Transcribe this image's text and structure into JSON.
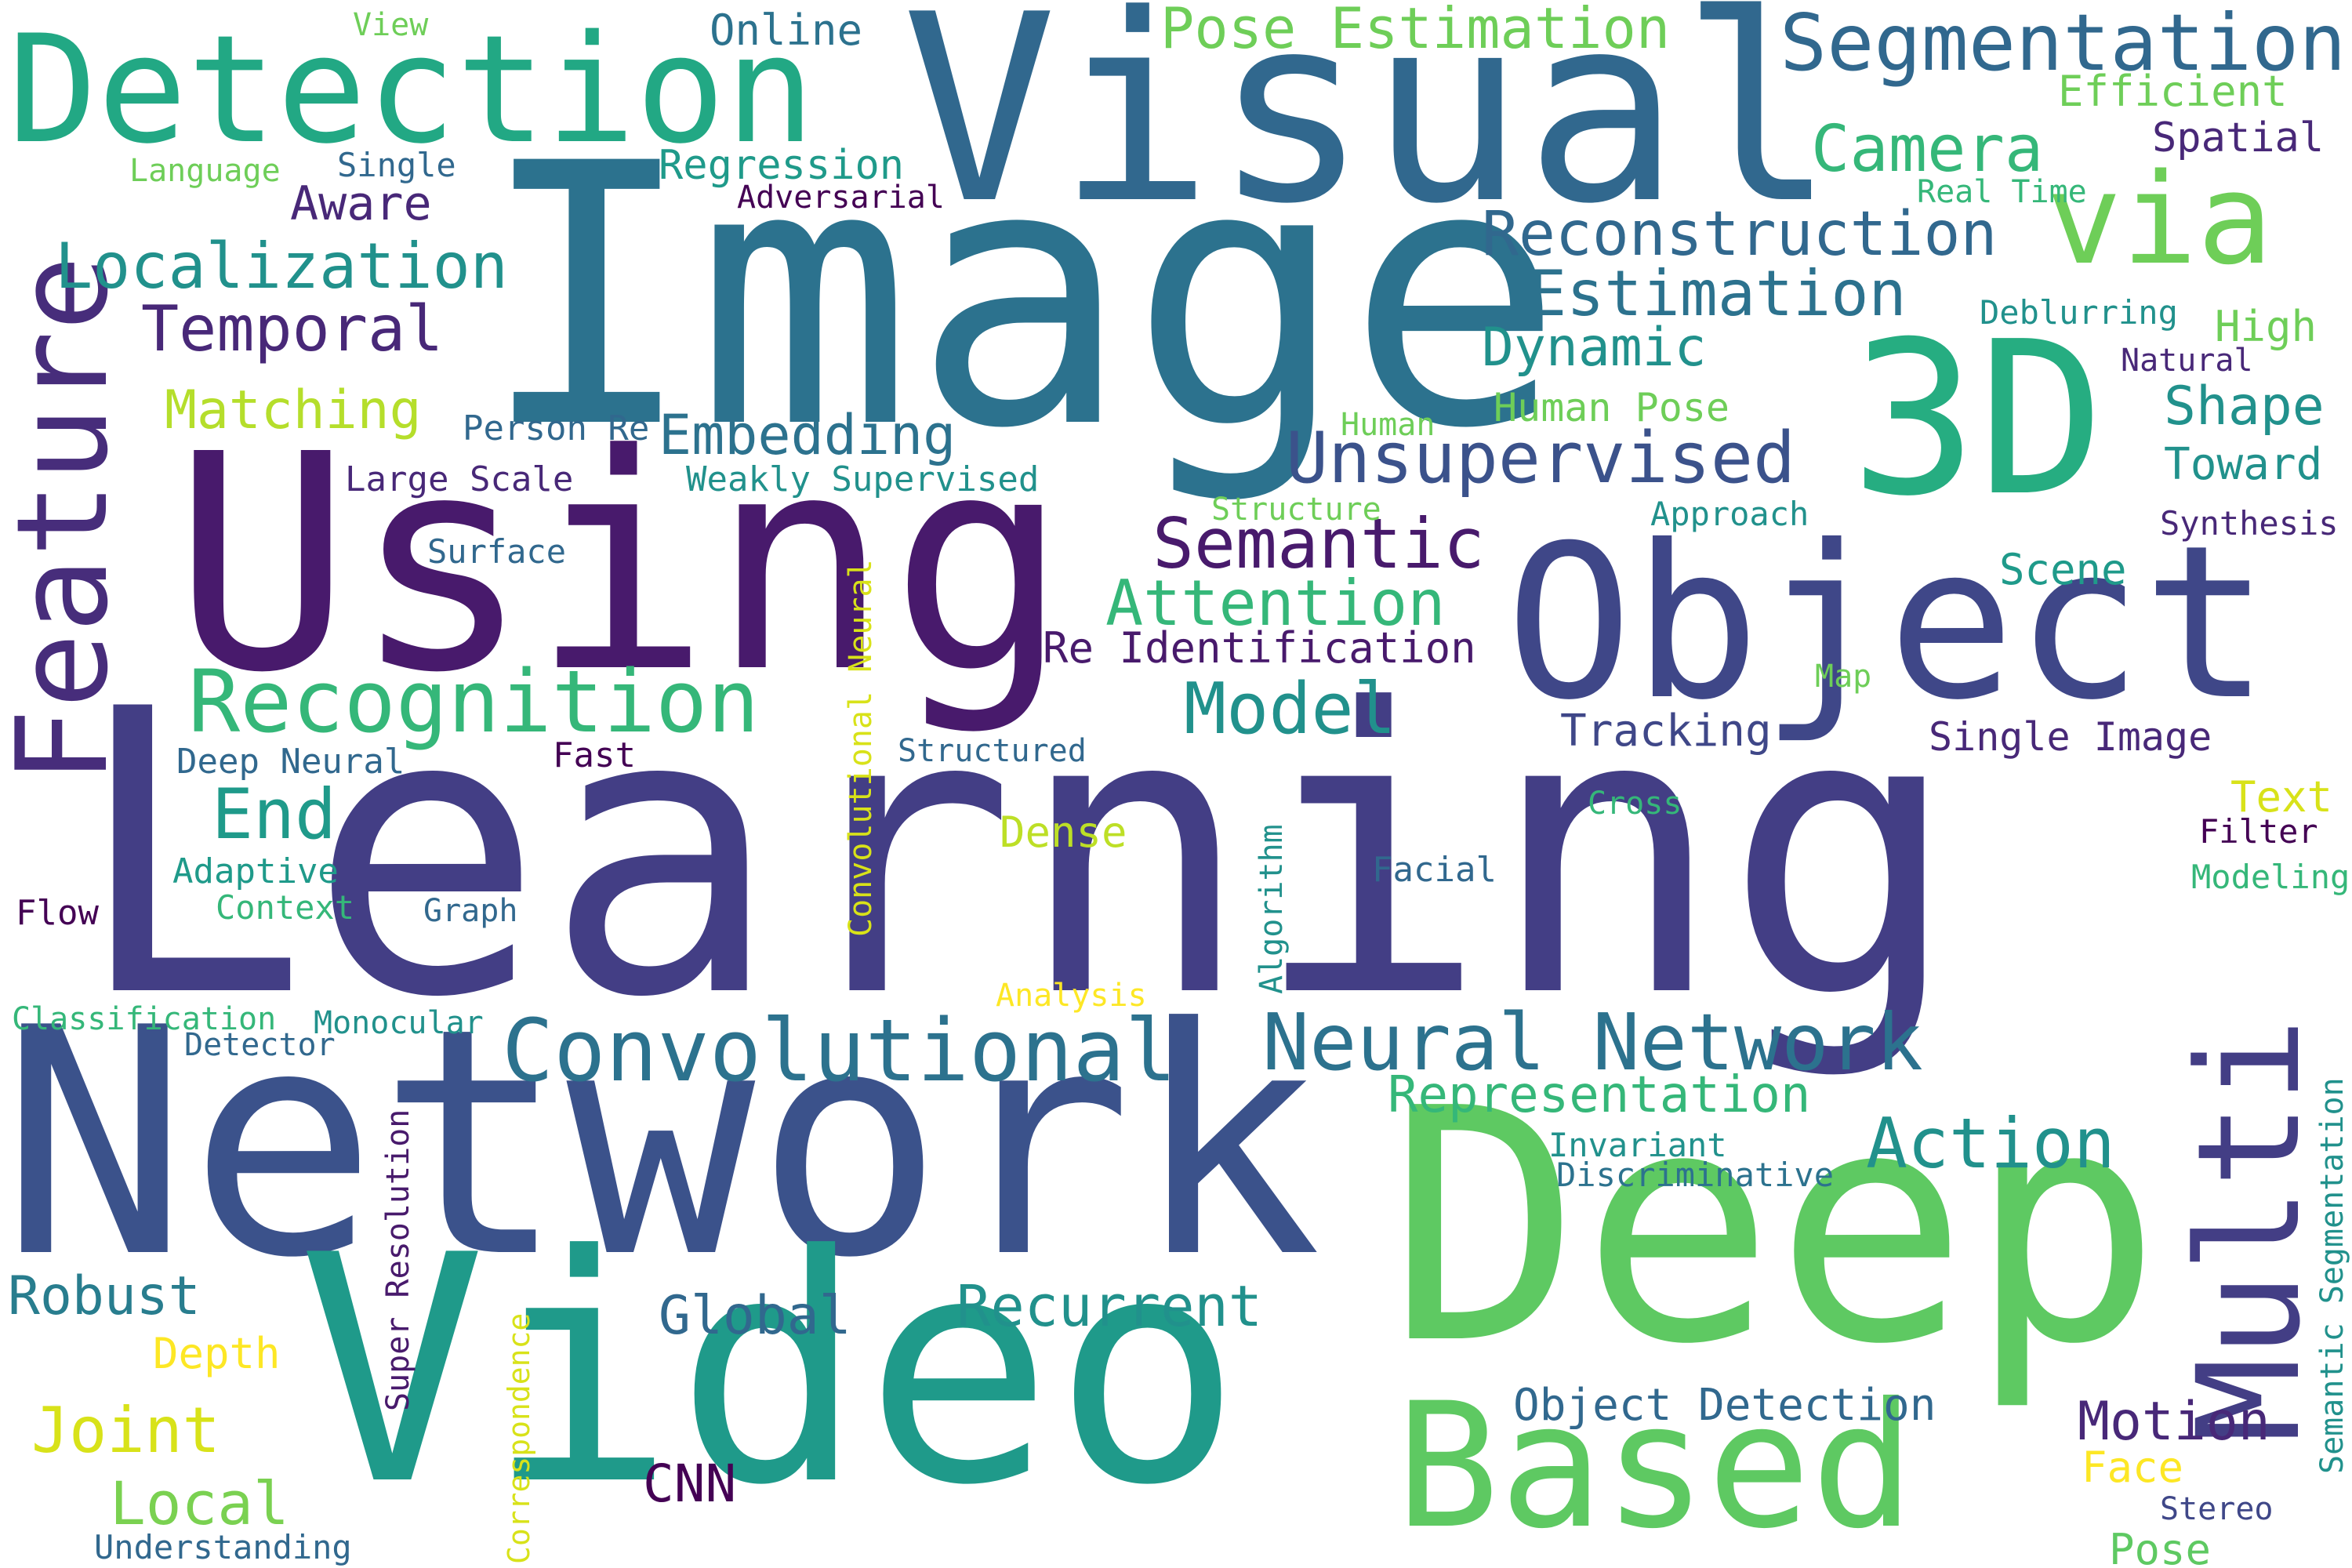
{
  "words": {
    "learning": "Learning",
    "network": "Network",
    "image": "Image",
    "using": "Using",
    "visual": "Visual",
    "deep": "Deep",
    "video": "Video",
    "object": "Object",
    "detection": "Detection",
    "three_d": "3D",
    "feature": "Feature",
    "based": "Based",
    "multi": "Multi",
    "via": "via",
    "segmentation": "Segmentation",
    "recognition": "Recognition",
    "convolutional": "Convolutional",
    "neural_network": "Neural Network",
    "unsupervised": "Unsupervised",
    "reconstruction": "Reconstruction",
    "estimation": "Estimation",
    "pose_estimation": "Pose Estimation",
    "localization": "Localization",
    "temporal": "Temporal",
    "semantic": "Semantic",
    "attention": "Attention",
    "model": "Model",
    "camera": "Camera",
    "action": "Action",
    "embedding": "Embedding",
    "end": "End",
    "recurrent": "Recurrent",
    "representation": "Representation",
    "dynamic": "Dynamic",
    "matching": "Matching",
    "shape": "Shape",
    "joint": "Joint",
    "motion": "Motion",
    "global": "Global",
    "robust": "Robust",
    "local": "Local",
    "object_detection": "Object Detection",
    "re_identification": "Re Identification",
    "tracking": "Tracking",
    "single_image": "Single Image",
    "regression": "Regression",
    "aware": "Aware",
    "cnn": "CNN",
    "toward": "Toward",
    "online": "Online",
    "dense": "Dense",
    "scene": "Scene",
    "human_pose": "Human Pose",
    "spatial": "Spatial",
    "efficient": "Efficient",
    "high": "High",
    "face": "Face",
    "depth": "Depth",
    "weakly_supervised": "Weakly Supervised",
    "person_re": "Person Re",
    "large_scale": "Large Scale",
    "deep_neural": "Deep Neural",
    "adaptive": "Adaptive",
    "context": "Context",
    "graph": "Graph",
    "facial": "Facial",
    "fast": "Fast",
    "text": "Text",
    "synthesis": "Synthesis",
    "surface": "Surface",
    "structure": "Structure",
    "approach": "Approach",
    "natural": "Natural",
    "deblurring": "Deblurring",
    "real_time": "Real Time",
    "adversarial": "Adversarial",
    "single": "Single",
    "language": "Language",
    "view": "View",
    "human": "Human",
    "structured": "Structured",
    "cross": "Cross",
    "filter": "Filter",
    "modeling": "Modeling",
    "flow": "Flow",
    "classification": "Classification",
    "monocular": "Monocular",
    "detector": "Detector",
    "analysis": "Analysis",
    "map": "Map",
    "invariant": "Invariant",
    "discriminative": "Discriminative",
    "understanding": "Understanding",
    "stereo": "Stereo",
    "pose": "Pose",
    "convolutional_neural": "Convolutional Neural",
    "algorithm": "Algorithm",
    "super_resolution": "Super Resolution",
    "correspondence": "Correspondence",
    "semantic_segmentation": "Semantic Segmentation"
  },
  "palette": {
    "dark_purple": "#46085c",
    "indigo": "#433e85",
    "blue": "#31688e",
    "teal": "#21918c",
    "green": "#35b779",
    "light_green": "#6ece58",
    "yellow_green": "#b5de2b",
    "yellow": "#e0e01a"
  }
}
